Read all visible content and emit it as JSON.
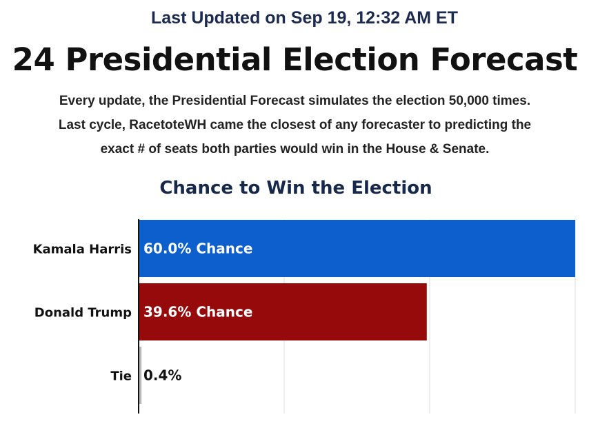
{
  "header": {
    "updated": "Last Updated on Sep 19, 12:32 AM ET",
    "title": "24 Presidential Election Forecast",
    "description_lines": [
      "Every update, the Presidential Forecast simulates the election 50,000 times.",
      "Last cycle, RacetoteWH came the closest of any forecaster to predicting the",
      "exact # of seats both parties would win in the House & Senate."
    ]
  },
  "chart_data": {
    "type": "bar",
    "orientation": "horizontal",
    "title": "Chance to Win the Election",
    "categories": [
      "Kamala Harris",
      "Donald Trump",
      "Tie"
    ],
    "values": [
      60.0,
      39.6,
      0.4
    ],
    "data_labels": [
      "60.0% Chance",
      "39.6% Chance",
      "0.4%"
    ],
    "xlim": [
      0,
      60
    ],
    "grid": true,
    "colors": [
      "#0c5fcc",
      "#960a0b",
      "#bbbbbb"
    ],
    "label_colors": [
      "#ffffff",
      "#ffffff",
      "#111111"
    ]
  }
}
